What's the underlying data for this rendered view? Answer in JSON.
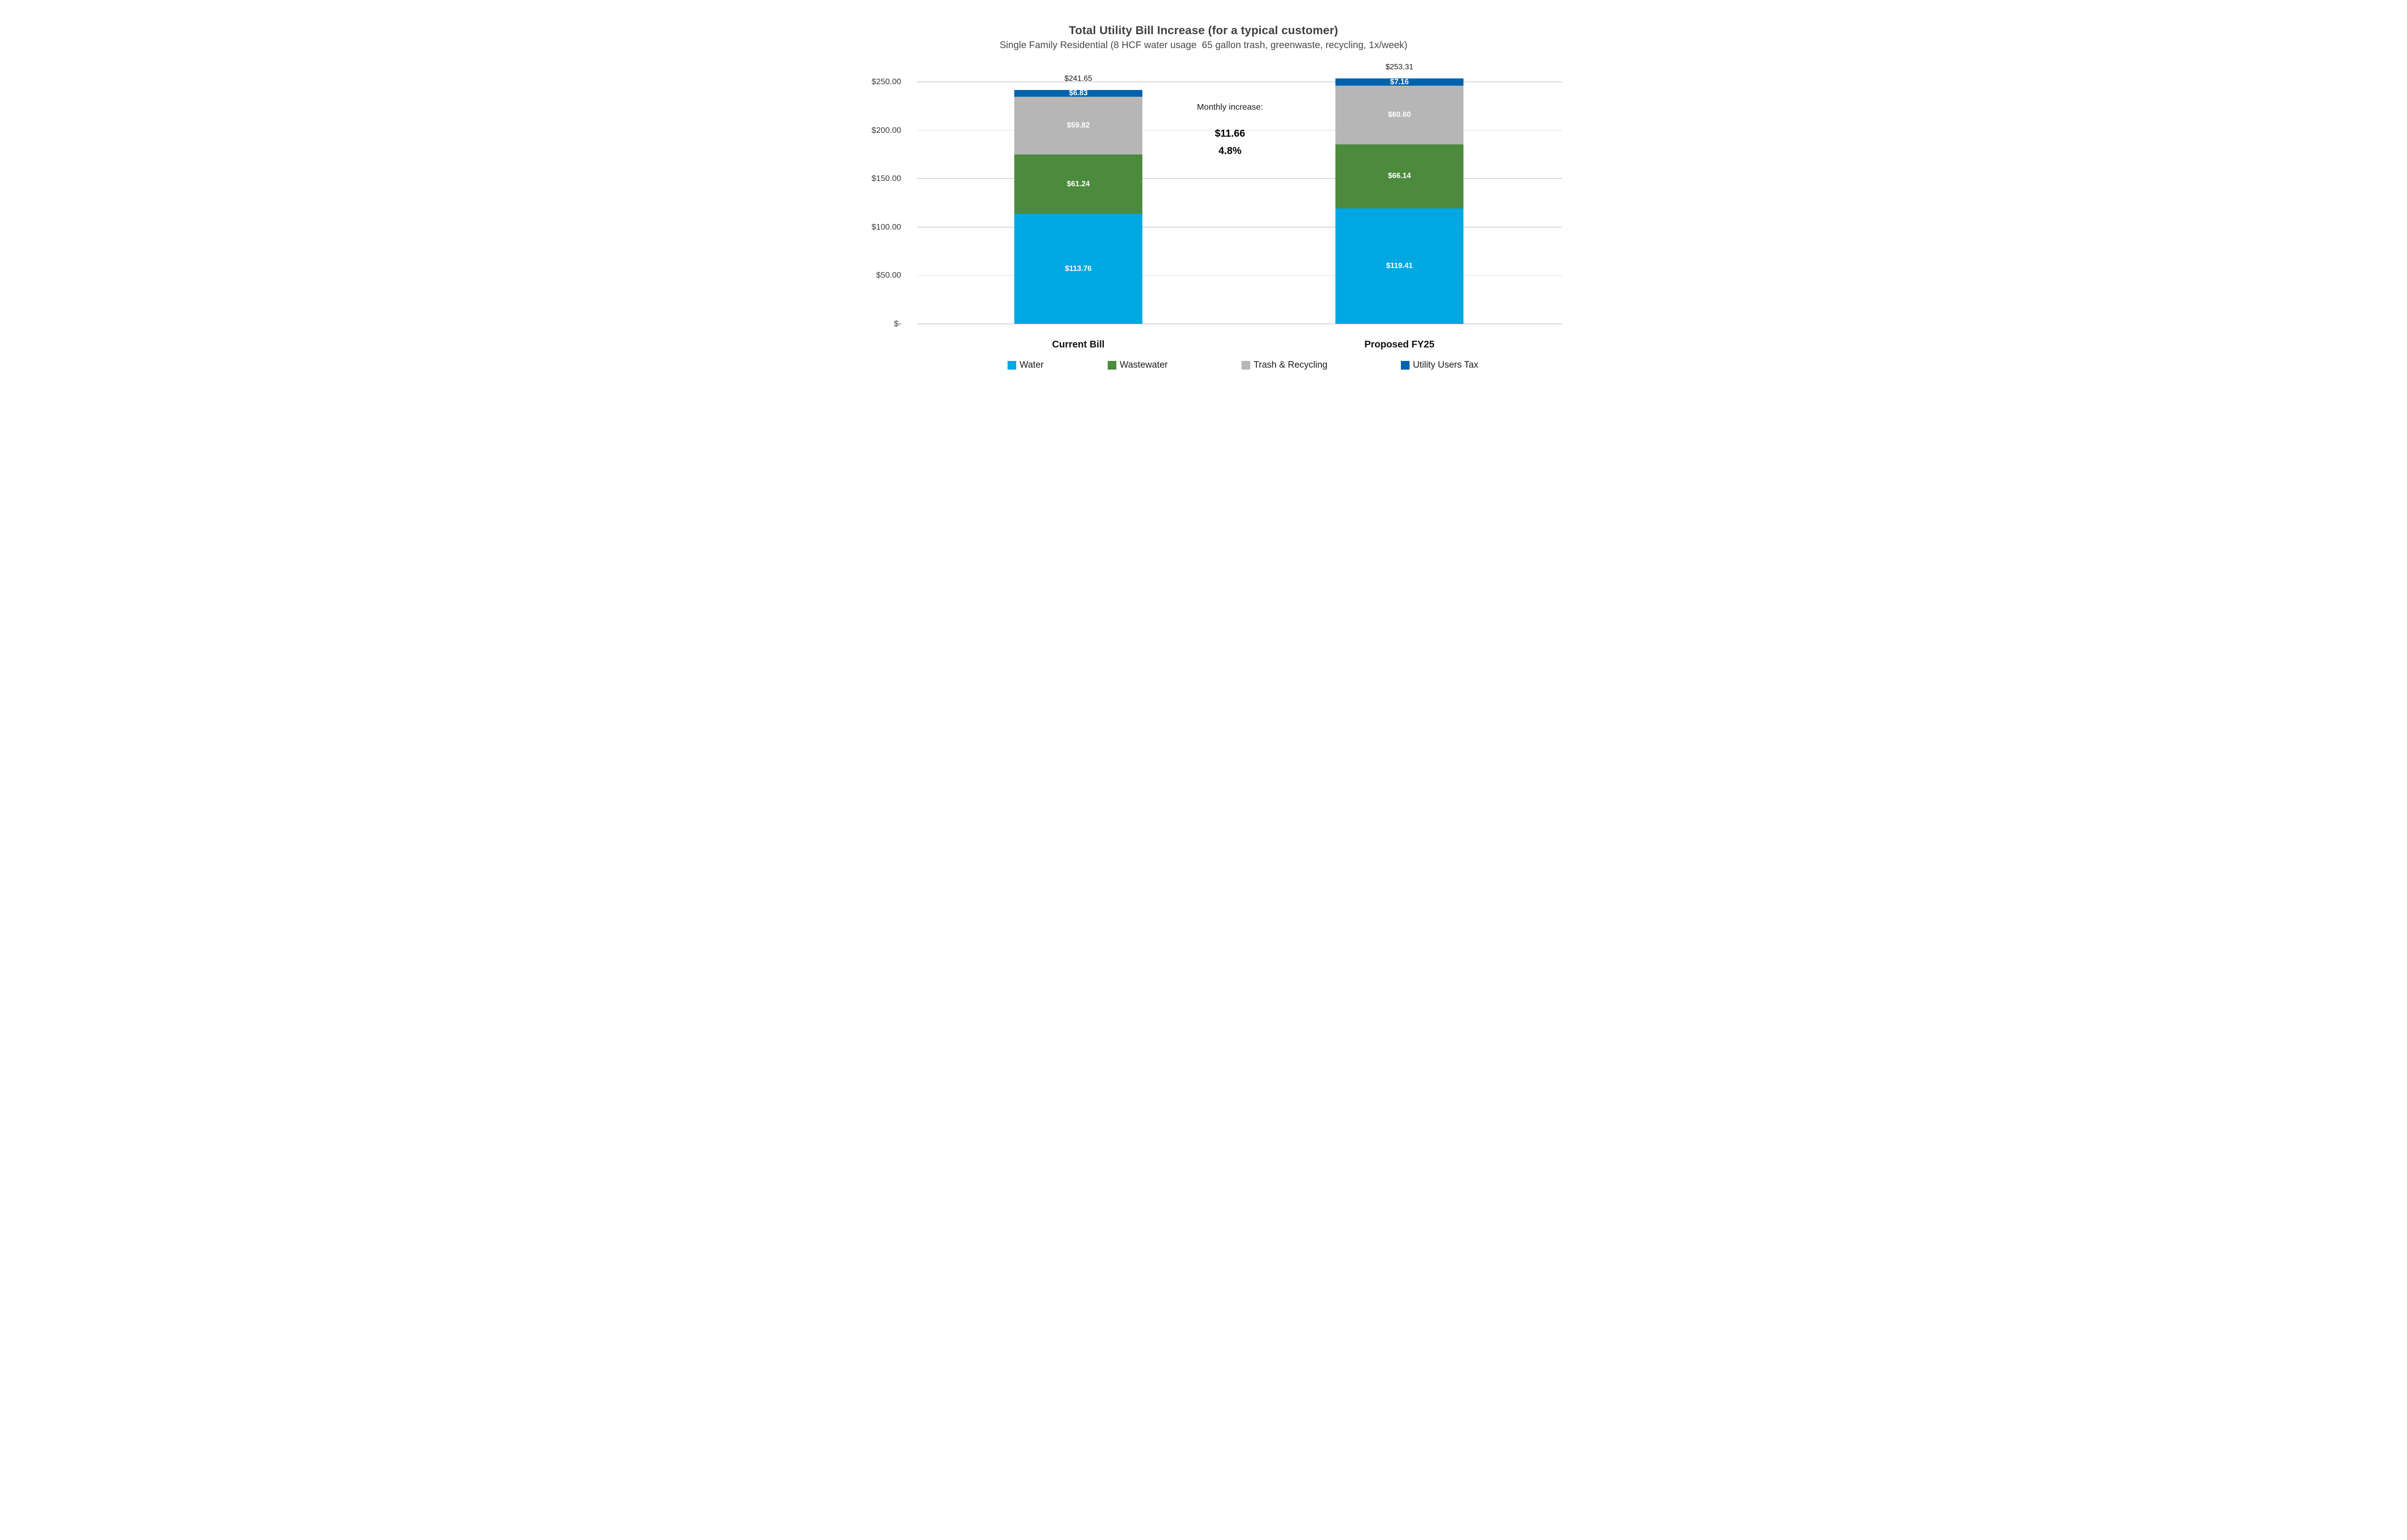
{
  "annotation": {
    "label": "Monthly increase:",
    "amount": "$11.66",
    "percent": "4.8%"
  },
  "chart_data": {
    "type": "bar",
    "stacked": true,
    "title": "Total Utility Bill Increase (for a typical customer)",
    "subtitle": "Single Family Residential (8 HCF water usage  65 gallon trash, greenwaste, recycling, 1x/week)",
    "categories": [
      "Current Bill",
      "Proposed FY25"
    ],
    "series": [
      {
        "name": "Water",
        "color": "#00A8E1",
        "values": [
          113.76,
          119.41
        ],
        "labels": [
          "$113.76",
          "$119.41"
        ]
      },
      {
        "name": "Wastewater",
        "color": "#4C8B3D",
        "values": [
          61.24,
          66.14
        ],
        "labels": [
          "$61.24",
          "$66.14"
        ]
      },
      {
        "name": "Trash & Recycling",
        "color": "#B6B6B6",
        "values": [
          59.82,
          60.6
        ],
        "labels": [
          "$59.82",
          "$60.60"
        ]
      },
      {
        "name": "Utility Users Tax",
        "color": "#0062AD",
        "values": [
          6.83,
          7.16
        ],
        "labels": [
          "$6.83",
          "$7.16"
        ]
      }
    ],
    "totals": [
      241.65,
      253.31
    ],
    "totals_display": [
      "$241.65",
      "$253.31"
    ],
    "annotation": {
      "label": "Monthly increase:",
      "amount": "$11.66",
      "percent": "4.8%"
    },
    "y_axis": {
      "ylim": [
        0,
        250
      ],
      "ticks": [
        0,
        50,
        100,
        150,
        200,
        250
      ],
      "tick_labels": [
        "$-",
        "$50.00",
        "$100.00",
        "$150.00",
        "$200.00",
        "$250.00"
      ]
    },
    "grid": true,
    "legend_position": "bottom",
    "legend_entries": [
      "Water",
      "Wastewater",
      "Trash & Recycling",
      "Utility Users Tax"
    ],
    "colors": {
      "gridline": "#D9D9D9",
      "title_text": "#404040",
      "axis_text": "#3A3A3A",
      "bar_label_text": "#FFFFFF",
      "value_label_text": "#1A1A1A"
    }
  }
}
